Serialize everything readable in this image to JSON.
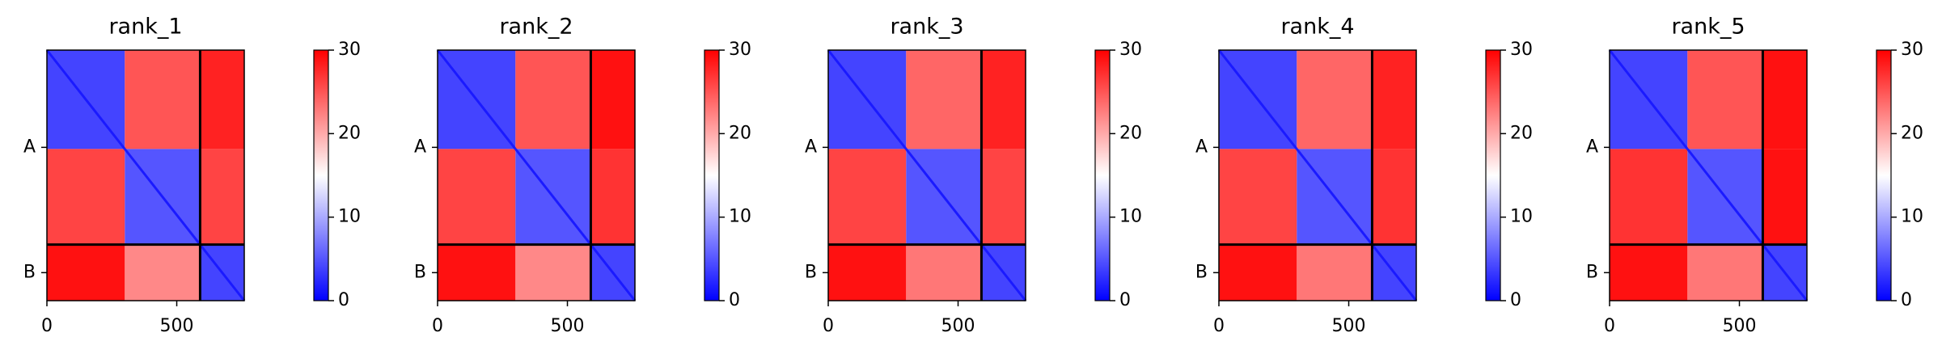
{
  "chart_data": [
    {
      "type": "heatmap",
      "title": "rank_1",
      "edges": [
        0,
        300,
        590,
        760
      ],
      "values": [
        [
          4,
          25,
          28
        ],
        [
          26,
          5,
          26
        ],
        [
          29,
          22,
          4
        ]
      ],
      "chain_boundaries": [
        590
      ],
      "xlim": [
        0,
        760
      ],
      "xticks": [
        0,
        500
      ],
      "ylim": [
        760,
        0
      ],
      "yticks": [
        {
          "value": 295,
          "label": "A"
        },
        {
          "value": 675,
          "label": "B"
        }
      ],
      "clim": [
        0,
        30
      ],
      "cticks": [
        0,
        10,
        20,
        30
      ],
      "colormap": "bwr"
    },
    {
      "type": "heatmap",
      "title": "rank_2",
      "edges": [
        0,
        300,
        590,
        760
      ],
      "values": [
        [
          4,
          25,
          29
        ],
        [
          26,
          5,
          27
        ],
        [
          29,
          22,
          4
        ]
      ],
      "chain_boundaries": [
        590
      ],
      "xlim": [
        0,
        760
      ],
      "xticks": [
        0,
        500
      ],
      "ylim": [
        760,
        0
      ],
      "yticks": [
        {
          "value": 295,
          "label": "A"
        },
        {
          "value": 675,
          "label": "B"
        }
      ],
      "clim": [
        0,
        30
      ],
      "cticks": [
        0,
        10,
        20,
        30
      ],
      "colormap": "bwr"
    },
    {
      "type": "heatmap",
      "title": "rank_3",
      "edges": [
        0,
        300,
        590,
        760
      ],
      "values": [
        [
          4,
          24,
          28
        ],
        [
          26,
          5,
          26
        ],
        [
          29,
          23,
          4
        ]
      ],
      "chain_boundaries": [
        590
      ],
      "xlim": [
        0,
        760
      ],
      "xticks": [
        0,
        500
      ],
      "ylim": [
        760,
        0
      ],
      "yticks": [
        {
          "value": 295,
          "label": "A"
        },
        {
          "value": 675,
          "label": "B"
        }
      ],
      "clim": [
        0,
        30
      ],
      "cticks": [
        0,
        10,
        20,
        30
      ],
      "colormap": "bwr"
    },
    {
      "type": "heatmap",
      "title": "rank_4",
      "edges": [
        0,
        300,
        590,
        760
      ],
      "values": [
        [
          4,
          24,
          28
        ],
        [
          26,
          5,
          27
        ],
        [
          29,
          23,
          4
        ]
      ],
      "chain_boundaries": [
        590
      ],
      "xlim": [
        0,
        760
      ],
      "xticks": [
        0,
        500
      ],
      "ylim": [
        760,
        0
      ],
      "yticks": [
        {
          "value": 295,
          "label": "A"
        },
        {
          "value": 675,
          "label": "B"
        }
      ],
      "clim": [
        0,
        30
      ],
      "cticks": [
        0,
        10,
        20,
        30
      ],
      "colormap": "bwr"
    },
    {
      "type": "heatmap",
      "title": "rank_5",
      "edges": [
        0,
        300,
        590,
        760
      ],
      "values": [
        [
          4,
          25,
          29
        ],
        [
          27,
          5,
          29
        ],
        [
          29,
          23,
          4
        ]
      ],
      "chain_boundaries": [
        590
      ],
      "xlim": [
        0,
        760
      ],
      "xticks": [
        0,
        500
      ],
      "ylim": [
        760,
        0
      ],
      "yticks": [
        {
          "value": 295,
          "label": "A"
        },
        {
          "value": 675,
          "label": "B"
        }
      ],
      "clim": [
        0,
        30
      ],
      "cticks": [
        0,
        10,
        20,
        30
      ],
      "colormap": "bwr"
    }
  ]
}
